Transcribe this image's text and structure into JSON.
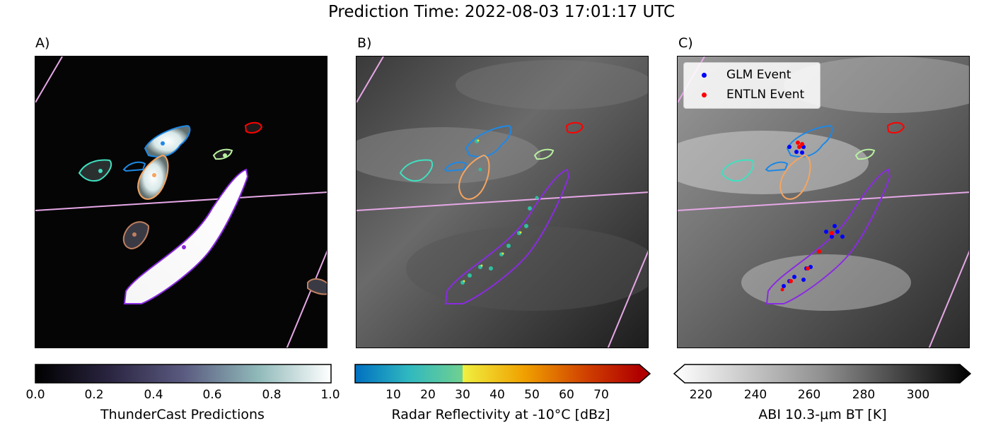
{
  "figure": {
    "title": "Prediction Time: 2022-08-03 17:01:17 UTC",
    "panels": [
      {
        "label": "A)",
        "image": "ThunderCast probability map with storm contours"
      },
      {
        "label": "B)",
        "image": "Radar reflectivity overlay on grayscale satellite imagery with storm contours"
      },
      {
        "label": "C)",
        "image": "ABI brightness temperature imagery with lightning events and storm contours"
      }
    ],
    "legend": {
      "items": [
        {
          "label": "GLM Event",
          "color": "#0000ff"
        },
        {
          "label": "ENTLN Event",
          "color": "#ff0000"
        }
      ]
    },
    "colorbars": [
      {
        "label": "ThunderCast Predictions",
        "ticks": [
          "0.0",
          "0.2",
          "0.4",
          "0.6",
          "0.8",
          "1.0"
        ]
      },
      {
        "label": "Radar Reflectivity at -10$^\\circ$C [dBz]",
        "display_label": "Radar Reflectivity at -10°C [dBz]",
        "ticks": [
          "10",
          "20",
          "30",
          "40",
          "50",
          "60",
          "70"
        ]
      },
      {
        "label": "ABI 10.3-μm BT [K]",
        "ticks": [
          "220",
          "240",
          "260",
          "280",
          "300"
        ]
      }
    ],
    "colors": {
      "contour_blue": "#1e88e5",
      "contour_cyan": "#40e0c0",
      "contour_orange": "#f4a460",
      "contour_purple": "#8a2be2",
      "contour_red": "#ff0000",
      "contour_lightgreen": "#b8f0a0",
      "contour_brown": "#c08060",
      "boundary_lines": "#e6a8e6"
    }
  }
}
